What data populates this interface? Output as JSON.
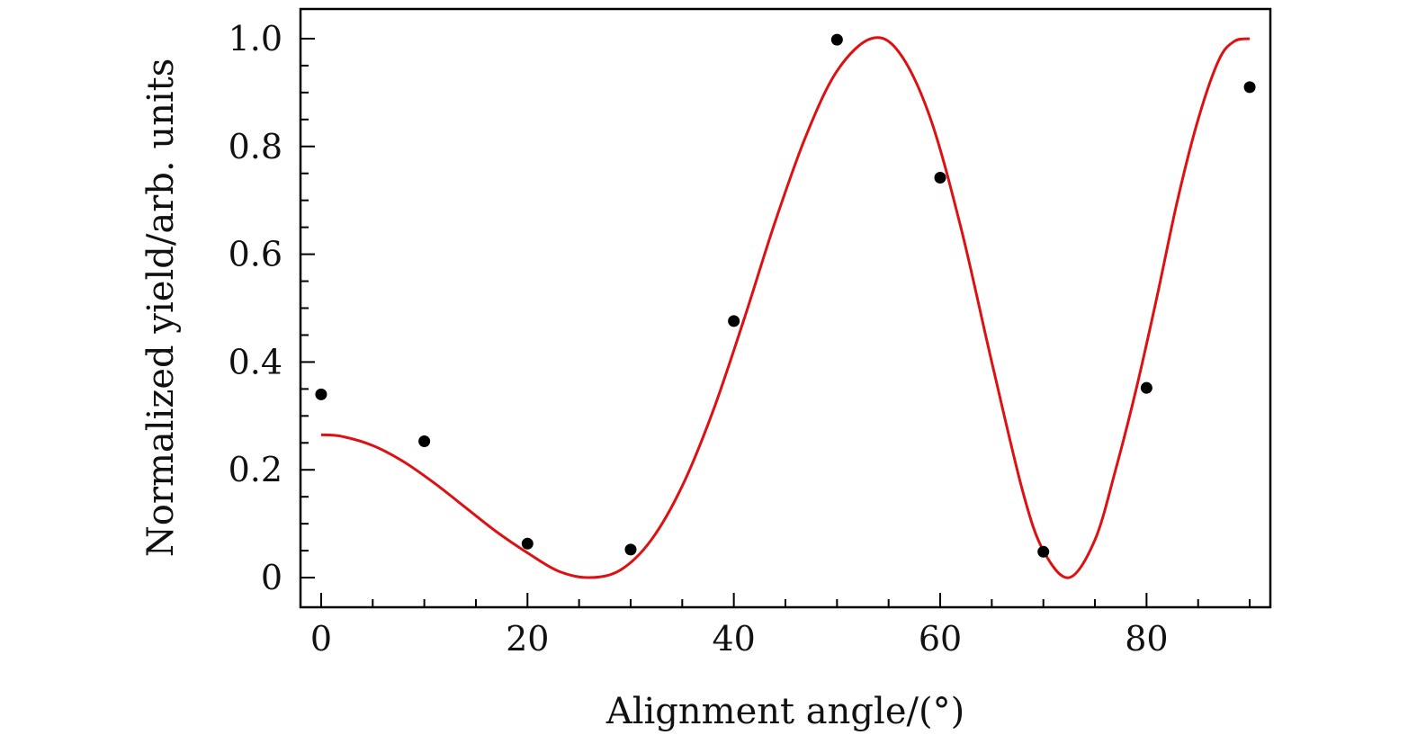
{
  "chart_data": {
    "type": "scatter",
    "xlabel": "Alignment angle/(°)",
    "ylabel": "Normalized yield/arb. units",
    "xlim": [
      -2,
      92
    ],
    "ylim": [
      -0.055,
      1.055
    ],
    "x_ticks": [
      0,
      20,
      40,
      60,
      80
    ],
    "x_tick_labels": [
      "0",
      "20",
      "40",
      "60",
      "80"
    ],
    "y_ticks": [
      0,
      0.2,
      0.4,
      0.6,
      0.8,
      1.0
    ],
    "y_tick_labels": [
      "0",
      "0.2",
      "0.4",
      "0.6",
      "0.8",
      "1.0"
    ],
    "grid": false,
    "colors": {
      "points": "#000000",
      "fit": "#dd1111",
      "axes": "#000000"
    },
    "series": [
      {
        "kind": "points",
        "x": [
          0,
          10,
          20,
          30,
          40,
          50,
          60,
          70,
          80,
          90
        ],
        "y": [
          0.34,
          0.253,
          0.063,
          0.052,
          0.476,
          0.998,
          0.742,
          0.048,
          0.352,
          0.91
        ]
      },
      {
        "kind": "line",
        "x": [
          0,
          2,
          5,
          8,
          11,
          14,
          17,
          20,
          23,
          26,
          29,
          32,
          35,
          38,
          41,
          44,
          47,
          50,
          53.3,
          56,
          59,
          62,
          65,
          68,
          70,
          72.5,
          75,
          77,
          79,
          81,
          83,
          85,
          87,
          88.5,
          90
        ],
        "y": [
          0.265,
          0.262,
          0.245,
          0.215,
          0.175,
          0.13,
          0.085,
          0.046,
          0.012,
          0.0,
          0.014,
          0.07,
          0.17,
          0.31,
          0.48,
          0.66,
          0.82,
          0.94,
          1.0,
          0.975,
          0.855,
          0.65,
          0.4,
          0.16,
          0.05,
          0.0,
          0.07,
          0.2,
          0.35,
          0.52,
          0.7,
          0.85,
          0.96,
          0.995,
          1.0
        ]
      }
    ]
  }
}
